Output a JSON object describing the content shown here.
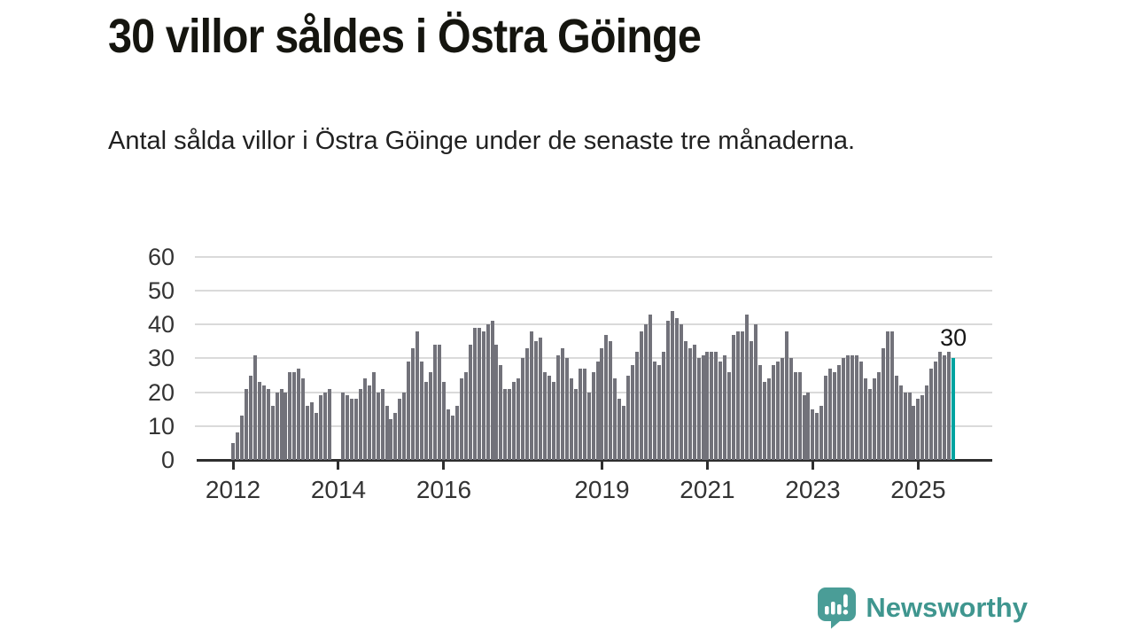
{
  "header": {
    "title": "30 villor såldes i Östra Göinge",
    "subtitle": "Antal sålda villor i Östra Göinge under de senaste tre månaderna."
  },
  "chart_data": {
    "type": "bar",
    "title": "30 villor såldes i Östra Göinge",
    "description": "Antal sålda villor i Östra Göinge under de senaste tre månaderna.",
    "start_month": "2012-01",
    "end_month": "2025-09",
    "frequency": "monthly (rolling 3-month sales count)",
    "values": [
      5,
      8,
      13,
      21,
      25,
      31,
      23,
      22,
      21,
      16,
      20,
      21,
      20,
      26,
      26,
      27,
      24,
      16,
      17,
      14,
      19,
      20,
      21,
      0,
      0,
      20,
      19,
      18,
      18,
      21,
      24,
      22,
      26,
      20,
      21,
      16,
      12,
      14,
      18,
      20,
      29,
      33,
      38,
      29,
      23,
      26,
      34,
      34,
      23,
      15,
      13,
      16,
      24,
      26,
      34,
      39,
      39,
      38,
      40,
      41,
      34,
      28,
      21,
      21,
      23,
      24,
      30,
      33,
      38,
      35,
      36,
      26,
      25,
      23,
      31,
      33,
      30,
      24,
      21,
      27,
      27,
      20,
      26,
      29,
      33,
      37,
      35,
      24,
      18,
      16,
      25,
      28,
      32,
      38,
      40,
      43,
      29,
      28,
      32,
      41,
      44,
      42,
      40,
      35,
      33,
      34,
      30,
      31,
      32,
      32,
      32,
      29,
      31,
      26,
      37,
      38,
      38,
      43,
      35,
      40,
      28,
      23,
      24,
      28,
      29,
      30,
      38,
      30,
      26,
      26,
      19,
      20,
      15,
      14,
      16,
      25,
      27,
      26,
      28,
      30,
      31,
      31,
      31,
      29,
      24,
      21,
      24,
      26,
      33,
      38,
      38,
      25,
      22,
      20,
      20,
      16,
      18,
      19,
      22,
      27,
      29,
      32,
      31,
      32,
      30
    ],
    "gap_months_zero_mean_missing": true,
    "y_ticks": [
      0,
      10,
      20,
      30,
      40,
      50,
      60
    ],
    "ylim": [
      0,
      62
    ],
    "x_ticks": [
      {
        "label": "2012",
        "month_index": 0
      },
      {
        "label": "2014",
        "month_index": 24
      },
      {
        "label": "2016",
        "month_index": 48
      },
      {
        "label": "2019",
        "month_index": 84
      },
      {
        "label": "2021",
        "month_index": 108
      },
      {
        "label": "2023",
        "month_index": 132
      },
      {
        "label": "2025",
        "month_index": 156
      }
    ],
    "last_value_label": "30",
    "highlight_last_bar": true,
    "grid": true,
    "legend": "none",
    "colors": {
      "bar": "#72727a",
      "highlight": "#00a3a0",
      "grid": "#dadada",
      "axis": "#2e2e2e",
      "tick_label": "#333333"
    }
  },
  "footer": {
    "brand": "Newsworthy",
    "brand_color": "#3f968f",
    "icon_color": "#4a9d97"
  }
}
